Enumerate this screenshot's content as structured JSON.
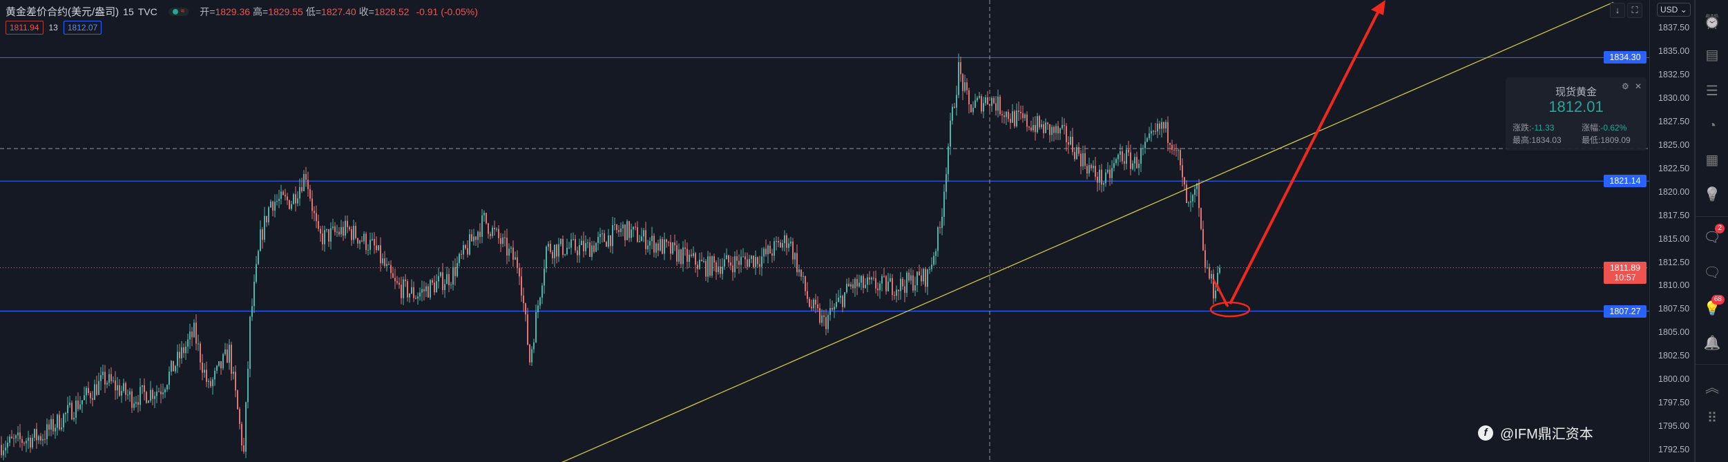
{
  "header": {
    "symbol": "黄金差价合约(美元/盎司)",
    "interval": "15",
    "source": "TVC",
    "ohlc": [
      {
        "k": "开=",
        "v": "1829.36"
      },
      {
        "k": "高=",
        "v": "1829.55"
      },
      {
        "k": "低=",
        "v": "1827.40"
      },
      {
        "k": "收=",
        "v": "1828.52"
      }
    ],
    "change": "-0.91 (-0.05%)",
    "bid": "1811.94",
    "spread": "13",
    "ask": "1812.07"
  },
  "axis": {
    "currency": "USD",
    "currency_icon": "chevron-down-icon",
    "ticks": [
      "1837.50",
      "1835.00",
      "1832.50",
      "1830.00",
      "1827.50",
      "1825.00",
      "1822.50",
      "1820.00",
      "1817.50",
      "1815.00",
      "1812.50",
      "1810.00",
      "1807.50",
      "1805.00",
      "1802.50",
      "1800.00",
      "1797.50",
      "1795.00",
      "1792.50"
    ],
    "price_labels": [
      {
        "value": "1834.30",
        "type": "line"
      },
      {
        "value": "1821.14",
        "type": "line"
      },
      {
        "value": "1807.27",
        "type": "line"
      }
    ],
    "last_price": "1811.89",
    "countdown": "10:57"
  },
  "info_panel": {
    "title": "现货黄金",
    "price": "1812.01",
    "change_label": "涨跌:",
    "change": "-11.33",
    "pct_label": "涨幅:",
    "pct": "-0.62%",
    "high_label": "最高:",
    "high": "1834.03",
    "low_label": "最低:",
    "low": "1809.09"
  },
  "sidebar": [
    {
      "icon": "alarm-clock-icon"
    },
    {
      "icon": "news-icon"
    },
    {
      "icon": "watchlist-icon"
    },
    {
      "icon": "pie-chart-icon"
    },
    {
      "icon": "calendar-icon"
    },
    {
      "icon": "lightbulb-icon"
    },
    {
      "icon": "chat-icon",
      "badge": "2"
    },
    {
      "icon": "chat-icon"
    },
    {
      "icon": "ideas-stream-icon",
      "badge": "68"
    },
    {
      "icon": "bell-icon"
    },
    {
      "icon": "chevrons-icon"
    },
    {
      "icon": "dots-grid-icon"
    }
  ],
  "watermark": "@IFM鼎汇资本",
  "colors": {
    "up": "#4db6ac",
    "down": "#e57373",
    "hline": "#2962ff",
    "trend": "#d4c83a",
    "annotation": "#f0281e",
    "bg": "#151924"
  },
  "chart_data": {
    "type": "candlestick",
    "ylim": [
      1791,
      1839
    ],
    "grid": false,
    "horizontal_lines": [
      1834.3,
      1821.14,
      1807.27
    ],
    "dashed_line": 1824.6,
    "last_price": 1811.89,
    "approx_close_path": {
      "bar_index": [
        0,
        20,
        50,
        63,
        77,
        93,
        100,
        110,
        115,
        117,
        120,
        125,
        130,
        140,
        147,
        153,
        167,
        180,
        190,
        200,
        217,
        233,
        250,
        255,
        263,
        283,
        300,
        320,
        340,
        367,
        380,
        390,
        397,
        410,
        433,
        447,
        453,
        457,
        462,
        467,
        477,
        487,
        500,
        513,
        527,
        533,
        540,
        547,
        560,
        567,
        570,
        573,
        577,
        580,
        585,
        588
      ],
      "close": [
        1793,
        1794,
        1800,
        1798,
        1799,
        1805,
        1799,
        1803,
        1795,
        1792,
        1806,
        1815,
        1819,
        1819,
        1822,
        1815,
        1816,
        1814,
        1810,
        1809,
        1811,
        1817,
        1812,
        1802,
        1814,
        1814,
        1816,
        1814,
        1812,
        1813,
        1815,
        1808,
        1806,
        1810,
        1810,
        1811,
        1816,
        1825,
        1833,
        1829,
        1830,
        1828,
        1827,
        1826,
        1822,
        1821,
        1824,
        1823,
        1827,
        1825,
        1821,
        1818,
        1820,
        1813,
        1809.5,
        1811.89
      ]
    },
    "trendline": {
      "from": {
        "bar": 268,
        "price": 1790.9
      },
      "to": {
        "bar": 778,
        "price": 1840.2
      }
    },
    "annotations": [
      "red-ellipse-at-1807",
      "red-arrow-up"
    ]
  }
}
